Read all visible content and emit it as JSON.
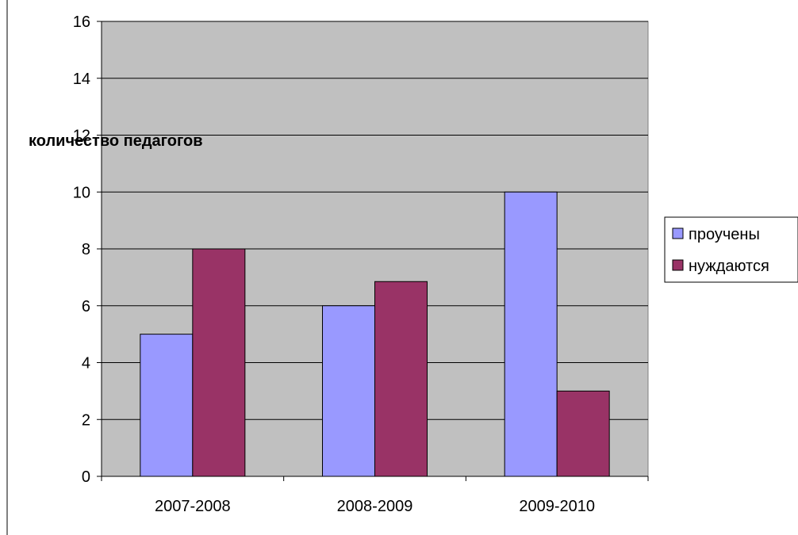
{
  "chart_data": {
    "type": "bar",
    "title": "",
    "xlabel": "",
    "ylabel": "количество педагогов",
    "categories": [
      "2007-2008",
      "2008-2009",
      "2009-2010"
    ],
    "series": [
      {
        "name": "проучены",
        "color": "#9999FF",
        "values": [
          5,
          6,
          10
        ]
      },
      {
        "name": "нуждаются",
        "color": "#993366",
        "values": [
          8,
          6.85,
          3
        ]
      }
    ],
    "ylim": [
      0,
      16
    ],
    "yticks": [
      "0",
      "2",
      "4",
      "6",
      "8",
      "10",
      "12",
      "14",
      "16"
    ],
    "grid": true,
    "plot_background": "#C0C0C0",
    "legend_position": "right"
  }
}
